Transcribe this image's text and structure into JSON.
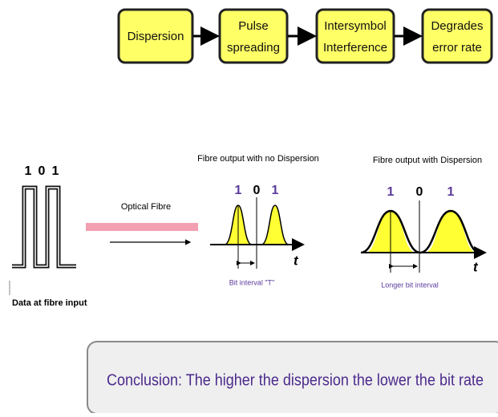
{
  "flow": [
    {
      "lines": [
        "Dispersion"
      ]
    },
    {
      "lines": [
        "Pulse",
        "spreading"
      ]
    },
    {
      "lines": [
        "Intersymbol",
        "Interference"
      ]
    },
    {
      "lines": [
        "Degrades",
        "error rate"
      ]
    }
  ],
  "input": {
    "bits": [
      "1",
      "0",
      "1"
    ],
    "label": "Data at fibre input"
  },
  "fibre": {
    "label": "Optical Fibre"
  },
  "no_dispersion": {
    "title": "Fibre output with no Dispersion",
    "bits": [
      "1",
      "0",
      "1"
    ],
    "axis": "t",
    "interval": "Bit interval \"T\""
  },
  "dispersion": {
    "title": "Fibre output with Dispersion",
    "bits": [
      "1",
      "0",
      "1"
    ],
    "axis": "t",
    "interval": "Longer bit interval"
  },
  "conclusion": "Conclusion:  The higher the dispersion the lower the bit rate"
}
